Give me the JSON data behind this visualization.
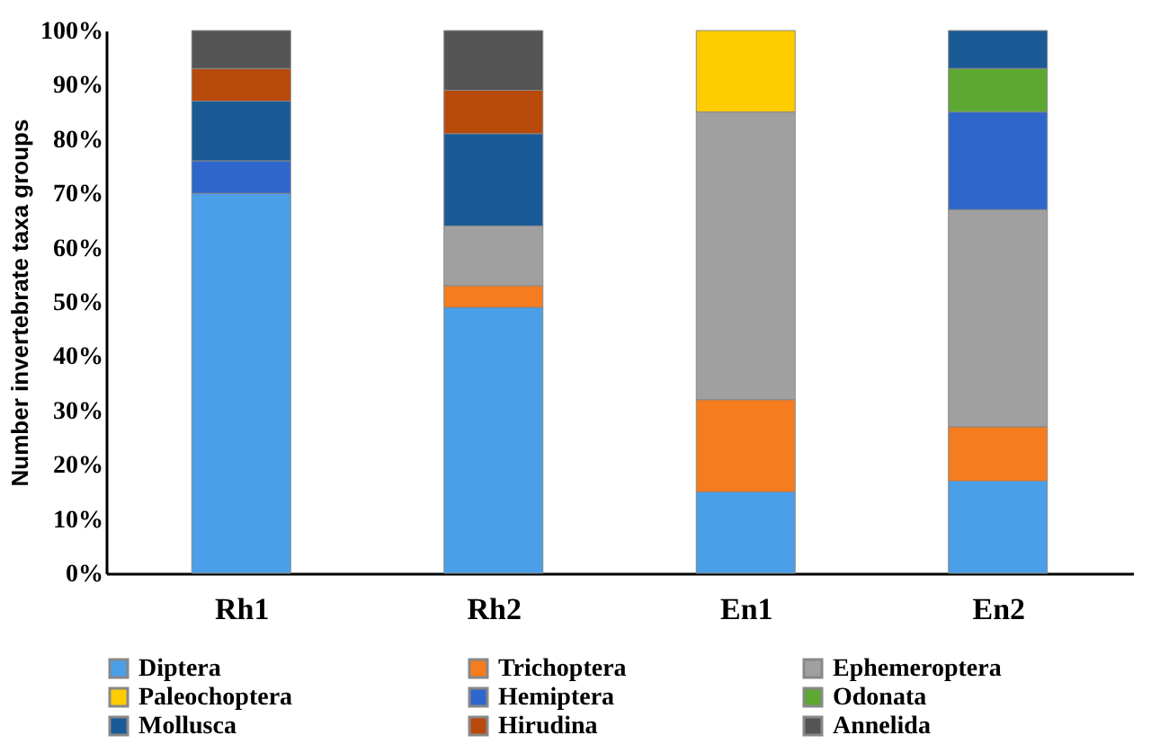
{
  "chart_data": {
    "type": "bar",
    "stacked": true,
    "ylabel": "Number invertebrate taxa groups",
    "categories": [
      "Rh1",
      "Rh2",
      "En1",
      "En2"
    ],
    "series": [
      {
        "name": "Diptera",
        "color": "#4a9fe8",
        "values": [
          70,
          49,
          15,
          17
        ]
      },
      {
        "name": "Trichoptera",
        "color": "#f57c1f",
        "values": [
          null,
          4,
          17,
          10
        ]
      },
      {
        "name": "Ephemeroptera",
        "color": "#a0a0a0",
        "values": [
          null,
          11,
          53,
          40
        ]
      },
      {
        "name": "Paleochoptera",
        "color": "#ffcc00",
        "values": [
          null,
          null,
          15,
          null
        ]
      },
      {
        "name": "Hemiptera",
        "color": "#2f66cc",
        "values": [
          6,
          null,
          null,
          18
        ]
      },
      {
        "name": "Odonata",
        "color": "#5da832",
        "values": [
          null,
          null,
          null,
          8
        ]
      },
      {
        "name": "Mollusca",
        "color": "#1a5a96",
        "values": [
          11,
          17,
          null,
          7
        ]
      },
      {
        "name": "Hirudina",
        "color": "#b84a0c",
        "values": [
          6,
          8,
          null,
          null
        ]
      },
      {
        "name": "Annelida",
        "color": "#555555",
        "values": [
          7,
          11,
          null,
          null
        ]
      }
    ],
    "ylim": [
      0,
      100
    ],
    "yticks": [
      {
        "value": 0,
        "label": "0%"
      },
      {
        "value": 10,
        "label": "10%"
      },
      {
        "value": 20,
        "label": "20%"
      },
      {
        "value": 30,
        "label": "30%"
      },
      {
        "value": 40,
        "label": "40%"
      },
      {
        "value": 50,
        "label": "50%"
      },
      {
        "value": 60,
        "label": "60%"
      },
      {
        "value": 70,
        "label": "70%"
      },
      {
        "value": 80,
        "label": "80%"
      },
      {
        "value": 90,
        "label": "90%"
      },
      {
        "value": 100,
        "label": "100%"
      }
    ],
    "grid": false,
    "legend": "bottom"
  }
}
